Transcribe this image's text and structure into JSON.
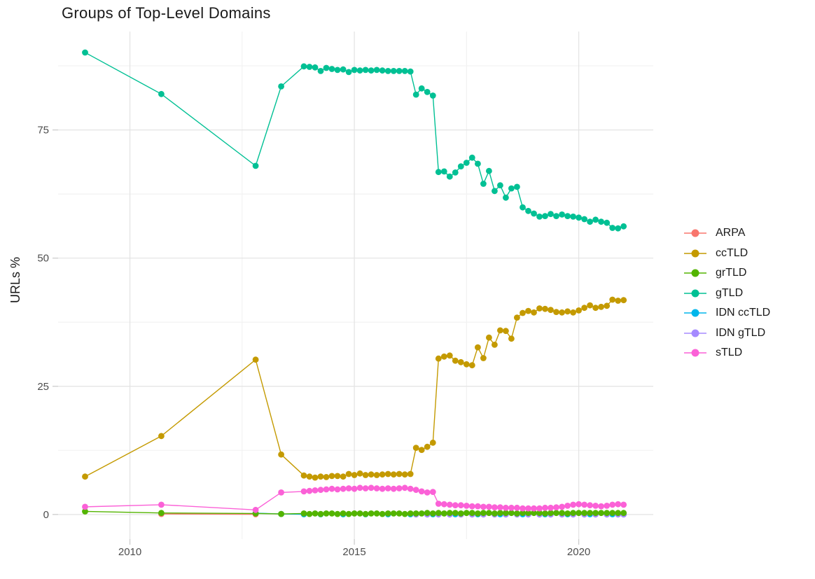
{
  "title": "Groups of Top-Level Domains",
  "axes": {
    "y_label": "URLs %",
    "y_ticks": [
      0,
      25,
      50,
      75
    ],
    "x_ticks": [
      2010,
      2015,
      2020
    ]
  },
  "colors": {
    "grid_major": "#E3E3E3",
    "grid_minor": "#F2F2F2",
    "tick_mark": "#C9C9C9",
    "tick_text": "#4D4D4D",
    "title_text": "#1A1A1A"
  },
  "legend": {
    "items": [
      {
        "id": "arpa",
        "label": "ARPA",
        "color": "#F8766D"
      },
      {
        "id": "cctld",
        "label": "ccTLD",
        "color": "#C49A00"
      },
      {
        "id": "grtld",
        "label": "grTLD",
        "color": "#53B400"
      },
      {
        "id": "gtld",
        "label": "gTLD",
        "color": "#00C094"
      },
      {
        "id": "idn-cctld",
        "label": "IDN ccTLD",
        "color": "#00B6EB"
      },
      {
        "id": "idn-gtld",
        "label": "IDN gTLD",
        "color": "#A58AFF"
      },
      {
        "id": "stld",
        "label": "sTLD",
        "color": "#FB61D7"
      }
    ]
  },
  "chart_data": {
    "type": "line",
    "title": "Groups of Top-Level Domains",
    "xlabel": "",
    "ylabel": "URLs %",
    "xlim": [
      2008.4,
      2021.66
    ],
    "ylim": [
      -4.8,
      94.2
    ],
    "x_ticks": [
      2010,
      2015,
      2020
    ],
    "x_minor_ticks": [
      2012.5,
      2017.5
    ],
    "y_ticks": [
      0,
      25,
      50,
      75
    ],
    "y_minor_ticks": [
      12.5,
      37.5,
      62.5,
      87.5
    ],
    "grid": true,
    "markers": true,
    "legend_position": "right",
    "x_common": [
      2009.0,
      2010.7,
      2012.8,
      2013.37,
      2013.875,
      2014.0,
      2014.125,
      2014.25,
      2014.375,
      2014.5,
      2014.625,
      2014.75,
      2014.875,
      2015.0,
      2015.125,
      2015.25,
      2015.375,
      2015.5,
      2015.625,
      2015.75,
      2015.875,
      2016.0,
      2016.125,
      2016.25,
      2016.375,
      2016.5,
      2016.625,
      2016.75,
      2016.875,
      2017.0,
      2017.125,
      2017.25,
      2017.375,
      2017.5,
      2017.625,
      2017.75,
      2017.875,
      2018.0,
      2018.125,
      2018.25,
      2018.375,
      2018.5,
      2018.625,
      2018.75,
      2018.875,
      2019.0,
      2019.125,
      2019.25,
      2019.375,
      2019.5,
      2019.625,
      2019.75,
      2019.875,
      2020.0,
      2020.125,
      2020.25,
      2020.375,
      2020.5,
      2020.625,
      2020.75,
      2020.875,
      2021.0
    ],
    "series": [
      {
        "name": "ARPA",
        "color": "#F8766D",
        "x": [
          2010.7,
          2012.8
        ],
        "y": [
          0.1,
          0.05
        ]
      },
      {
        "name": "ccTLD",
        "color": "#C49A00",
        "y": [
          7.4,
          15.3,
          30.2,
          11.7,
          7.6,
          7.4,
          7.2,
          7.4,
          7.3,
          7.5,
          7.5,
          7.4,
          7.9,
          7.7,
          8.0,
          7.7,
          7.8,
          7.7,
          7.8,
          7.9,
          7.8,
          7.9,
          7.8,
          7.9,
          13.0,
          12.6,
          13.2,
          14.0,
          30.4,
          30.8,
          31.0,
          30.0,
          29.7,
          29.3,
          29.1,
          32.6,
          30.5,
          34.5,
          33.1,
          35.9,
          35.8,
          34.3,
          38.4,
          39.3,
          39.7,
          39.4,
          40.2,
          40.1,
          39.9,
          39.5,
          39.4,
          39.6,
          39.4,
          39.8,
          40.3,
          40.8,
          40.3,
          40.5,
          40.7,
          41.9,
          41.7,
          41.8
        ]
      },
      {
        "name": "IDN ccTLD",
        "color": "#00B6EB",
        "x": [
          2012.8,
          2013.37,
          2013.875,
          2014.25,
          2014.75,
          2015.25,
          2015.75,
          2016.25,
          2016.75,
          2016.875,
          2017.25,
          2017.75,
          2018.25,
          2018.75,
          2019.25,
          2019.75,
          2020.25,
          2020.75,
          2021.0
        ],
        "y": [
          0.25,
          0.1,
          0.05,
          0.05,
          0.05,
          0.05,
          0.05,
          0.05,
          0.05,
          0.1,
          0.05,
          0.05,
          0.05,
          0.05,
          0.05,
          0.05,
          0.05,
          0.05,
          0.05
        ]
      },
      {
        "name": "IDN gTLD",
        "color": "#A58AFF",
        "x": [
          2016.375,
          2016.625,
          2016.875,
          2017.125,
          2017.375,
          2017.625,
          2017.875,
          2018.125,
          2018.375,
          2018.625,
          2018.875,
          2019.125,
          2019.375,
          2019.625,
          2019.875,
          2020.125,
          2020.375,
          2020.625,
          2020.875,
          2021.0
        ],
        "y": [
          0.0,
          0.0,
          0.0,
          0.0,
          0.0,
          0.0,
          0.0,
          0.0,
          0.0,
          0.0,
          0.0,
          0.0,
          0.0,
          0.0,
          0.0,
          0.0,
          0.0,
          0.0,
          0.0,
          0.0
        ]
      },
      {
        "name": "grTLD",
        "color": "#53B400",
        "y": [
          0.6,
          0.3,
          0.2,
          0.1,
          0.2,
          0.1,
          0.2,
          0.1,
          0.2,
          0.2,
          0.1,
          0.2,
          0.1,
          0.2,
          0.2,
          0.1,
          0.2,
          0.2,
          0.1,
          0.2,
          0.2,
          0.2,
          0.1,
          0.2,
          0.2,
          0.2,
          0.3,
          0.2,
          0.3,
          0.2,
          0.3,
          0.3,
          0.2,
          0.3,
          0.3,
          0.2,
          0.3,
          0.3,
          0.2,
          0.3,
          0.3,
          0.3,
          0.2,
          0.3,
          0.3,
          0.3,
          0.3,
          0.2,
          0.3,
          0.3,
          0.3,
          0.2,
          0.3,
          0.3,
          0.3,
          0.3,
          0.3,
          0.3,
          0.3,
          0.3,
          0.3,
          0.3
        ]
      },
      {
        "name": "gTLD",
        "color": "#00C094",
        "y": [
          90.1,
          82.0,
          68.0,
          83.5,
          87.4,
          87.3,
          87.2,
          86.5,
          87.1,
          86.9,
          86.7,
          86.8,
          86.3,
          86.7,
          86.6,
          86.7,
          86.6,
          86.7,
          86.6,
          86.5,
          86.5,
          86.5,
          86.5,
          86.4,
          81.9,
          83.1,
          82.4,
          81.7,
          66.8,
          66.9,
          65.9,
          66.7,
          67.9,
          68.6,
          69.6,
          68.4,
          64.5,
          67.0,
          63.1,
          64.2,
          61.8,
          63.6,
          63.9,
          59.9,
          59.2,
          58.7,
          58.1,
          58.2,
          58.6,
          58.2,
          58.5,
          58.2,
          58.1,
          57.9,
          57.6,
          57.1,
          57.5,
          57.1,
          56.9,
          55.9,
          55.8,
          56.2
        ]
      },
      {
        "name": "sTLD",
        "color": "#FB61D7",
        "y": [
          1.5,
          1.9,
          0.9,
          4.3,
          4.5,
          4.6,
          4.7,
          4.8,
          4.9,
          5.0,
          4.9,
          5.0,
          5.1,
          5.0,
          5.2,
          5.1,
          5.2,
          5.1,
          5.0,
          5.1,
          5.0,
          5.1,
          5.2,
          5.0,
          4.8,
          4.5,
          4.3,
          4.4,
          2.1,
          2.0,
          1.9,
          1.8,
          1.8,
          1.7,
          1.6,
          1.6,
          1.5,
          1.5,
          1.4,
          1.4,
          1.3,
          1.3,
          1.3,
          1.2,
          1.2,
          1.2,
          1.2,
          1.3,
          1.3,
          1.4,
          1.5,
          1.7,
          1.9,
          2.0,
          1.9,
          1.8,
          1.7,
          1.6,
          1.7,
          1.9,
          2.0,
          1.9
        ]
      }
    ]
  }
}
